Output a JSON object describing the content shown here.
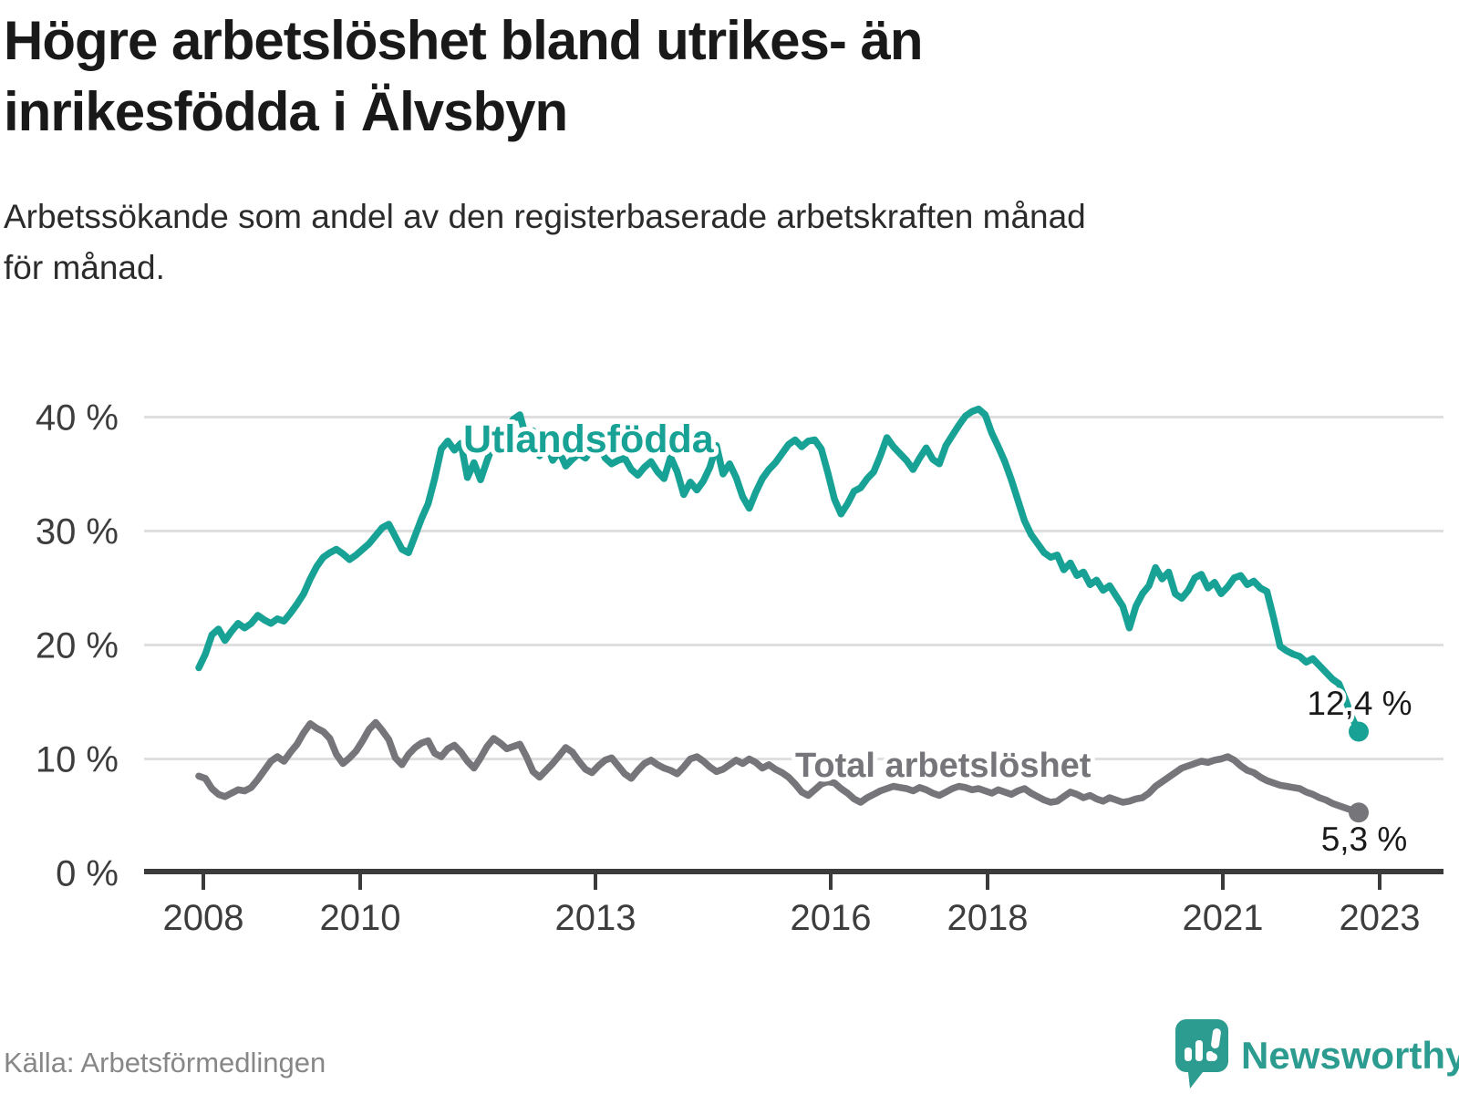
{
  "header": {
    "title_lines": [
      "Högre arbetslöshet bland utrikes- än",
      "inrikesfödda i Älvsbyn"
    ],
    "subtitle_lines": [
      "Arbetssökande som andel av den registerbaserade arbetskraften månad",
      "för månad."
    ]
  },
  "footer": {
    "source_label": "Källa: Arbetsförmedlingen",
    "brand_name": "Newsworthy"
  },
  "colors": {
    "series_foreign": "#17a295",
    "series_total": "#76767a",
    "grid": "#dfdfdf",
    "axis": "#3b3b3b",
    "tick_text": "#3d3d3d",
    "annotation_text": "#1a1a1a",
    "brand_teal": "#2d9c90",
    "background": "#ffffff"
  },
  "chart_data": {
    "type": "line",
    "title": "Högre arbetslöshet bland utrikes- än inrikesfödda i Älvsbyn",
    "xlabel": "",
    "ylabel": "",
    "x_start_year": 2008.0,
    "x_end_year": 2022.75,
    "points_per_year": 12,
    "ylim": [
      0,
      42
    ],
    "grid": "horizontal",
    "legend_position": "inline-labels",
    "y_ticks": [
      {
        "value": 40,
        "label": "40 %"
      },
      {
        "value": 30,
        "label": "30 %"
      },
      {
        "value": 20,
        "label": "20 %"
      },
      {
        "value": 10,
        "label": "10 %"
      },
      {
        "value": 0,
        "label": "0 %"
      }
    ],
    "x_ticks": [
      {
        "year": 2008,
        "label": "2008"
      },
      {
        "year": 2010,
        "label": "2010"
      },
      {
        "year": 2013,
        "label": "2013"
      },
      {
        "year": 2016,
        "label": "2016"
      },
      {
        "year": 2018,
        "label": "2018"
      },
      {
        "year": 2021,
        "label": "2021"
      },
      {
        "year": 2023,
        "label": "2023"
      }
    ],
    "series": [
      {
        "name": "Utlandsfödda",
        "color": "#17a295",
        "end_label": "12,4 %",
        "end_value": 12.4,
        "values": [
          18.0,
          19.2,
          20.9,
          21.4,
          20.4,
          21.2,
          21.9,
          21.5,
          21.9,
          22.6,
          22.2,
          21.9,
          22.3,
          22.1,
          22.8,
          23.6,
          24.5,
          25.8,
          26.9,
          27.7,
          28.1,
          28.4,
          28.0,
          27.5,
          27.9,
          28.4,
          28.9,
          29.6,
          30.3,
          30.6,
          29.5,
          28.4,
          28.1,
          29.6,
          31.1,
          32.4,
          34.6,
          37.2,
          37.9,
          37.1,
          37.7,
          34.7,
          36.0,
          34.5,
          36.2,
          37.7,
          38.5,
          38.9,
          39.8,
          40.2,
          38.1,
          38.8,
          36.6,
          37.8,
          36.2,
          37.0,
          35.7,
          36.3,
          36.8,
          36.4,
          37.2,
          37.8,
          36.4,
          35.9,
          36.2,
          36.4,
          35.4,
          34.9,
          35.6,
          36.1,
          35.2,
          34.6,
          36.5,
          35.2,
          33.2,
          34.3,
          33.6,
          34.4,
          35.6,
          37.5,
          35.0,
          35.9,
          34.7,
          33.0,
          32.0,
          33.4,
          34.6,
          35.4,
          36.0,
          36.8,
          37.6,
          38.0,
          37.4,
          37.9,
          38.0,
          37.2,
          35.1,
          32.8,
          31.5,
          32.4,
          33.5,
          33.8,
          34.6,
          35.2,
          36.6,
          38.2,
          37.4,
          36.8,
          36.2,
          35.4,
          36.4,
          37.3,
          36.3,
          35.9,
          37.5,
          38.4,
          39.3,
          40.1,
          40.5,
          40.7,
          40.2,
          38.6,
          37.4,
          36.1,
          34.5,
          32.7,
          30.9,
          29.7,
          28.9,
          28.1,
          27.7,
          27.9,
          26.6,
          27.2,
          26.1,
          26.4,
          25.3,
          25.7,
          24.8,
          25.2,
          24.3,
          23.4,
          21.5,
          23.4,
          24.5,
          25.2,
          26.8,
          25.8,
          26.4,
          24.5,
          24.1,
          24.8,
          25.9,
          26.2,
          25.0,
          25.5,
          24.5,
          25.1,
          25.9,
          26.1,
          25.3,
          25.6,
          25.0,
          24.7,
          22.4,
          19.9,
          19.5,
          19.2,
          19.0,
          18.5,
          18.8,
          18.2,
          17.6,
          17.0,
          16.6,
          15.2,
          13.6,
          12.4
        ]
      },
      {
        "name": "Total arbetslöshet",
        "color": "#76767a",
        "end_label": "5,3 %",
        "end_value": 5.3,
        "values": [
          8.5,
          8.3,
          7.4,
          6.9,
          6.7,
          7.0,
          7.3,
          7.2,
          7.5,
          8.2,
          9.0,
          9.8,
          10.2,
          9.8,
          10.6,
          11.3,
          12.3,
          13.1,
          12.7,
          12.4,
          11.8,
          10.4,
          9.6,
          10.1,
          10.7,
          11.6,
          12.6,
          13.2,
          12.5,
          11.7,
          10.1,
          9.5,
          10.4,
          11.0,
          11.4,
          11.6,
          10.5,
          10.2,
          10.9,
          11.2,
          10.6,
          9.8,
          9.2,
          10.1,
          11.1,
          11.8,
          11.4,
          10.9,
          11.1,
          11.3,
          10.2,
          8.9,
          8.4,
          9.0,
          9.6,
          10.3,
          11.0,
          10.6,
          9.8,
          9.1,
          8.8,
          9.4,
          9.9,
          10.1,
          9.4,
          8.7,
          8.3,
          9.0,
          9.6,
          9.9,
          9.5,
          9.2,
          9.0,
          8.7,
          9.3,
          10.0,
          10.2,
          9.8,
          9.3,
          8.9,
          9.1,
          9.5,
          9.9,
          9.6,
          10.0,
          9.7,
          9.2,
          9.5,
          9.1,
          8.8,
          8.4,
          7.8,
          7.1,
          6.8,
          7.3,
          7.8,
          8.0,
          7.9,
          7.4,
          7.0,
          6.5,
          6.2,
          6.6,
          6.9,
          7.2,
          7.4,
          7.6,
          7.5,
          7.4,
          7.2,
          7.5,
          7.3,
          7.0,
          6.8,
          7.1,
          7.4,
          7.6,
          7.5,
          7.3,
          7.4,
          7.2,
          7.0,
          7.3,
          7.1,
          6.9,
          7.2,
          7.4,
          7.0,
          6.7,
          6.4,
          6.2,
          6.3,
          6.7,
          7.1,
          6.9,
          6.6,
          6.8,
          6.5,
          6.3,
          6.6,
          6.4,
          6.2,
          6.3,
          6.5,
          6.6,
          7.0,
          7.6,
          8.0,
          8.4,
          8.8,
          9.2,
          9.4,
          9.6,
          9.8,
          9.7,
          9.9,
          10.0,
          10.2,
          9.9,
          9.4,
          9.0,
          8.8,
          8.4,
          8.1,
          7.9,
          7.7,
          7.6,
          7.5,
          7.4,
          7.1,
          6.9,
          6.6,
          6.4,
          6.1,
          5.9,
          5.7,
          5.5,
          5.3
        ]
      }
    ],
    "inline_labels": [
      {
        "text": "Utlandsfödda",
        "series": 0
      },
      {
        "text": "Total arbetslöshet",
        "series": 1
      }
    ]
  }
}
